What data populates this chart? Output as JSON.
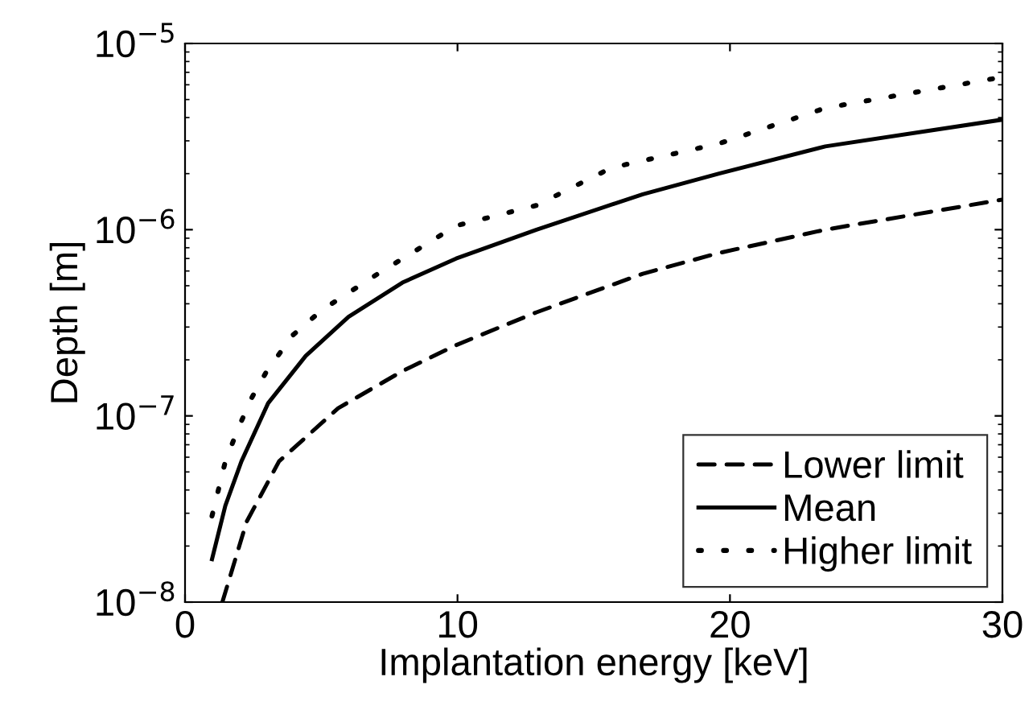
{
  "chart_data": {
    "type": "line",
    "xlabel": "Implantation energy [keV]",
    "ylabel": "Depth [m]",
    "log": "y",
    "xlim": [
      0,
      30
    ],
    "ylim": [
      1e-08,
      1e-05
    ],
    "xticks": [
      0,
      10,
      20,
      30
    ],
    "yticks": [
      {
        "value": 1e-08,
        "label": "10$^{−8}$"
      },
      {
        "value": 1e-07,
        "label": "10$^{−7}$"
      },
      {
        "value": 1e-06,
        "label": "10$^{−6}$"
      },
      {
        "value": 1e-05,
        "label": "10$^{−5}$"
      }
    ],
    "grid": false,
    "legend": "bottom right",
    "series": [
      {
        "name": "Lower limit",
        "color": "#000000",
        "line_style": "dashed",
        "x": [
          1.37,
          2.26,
          3.45,
          5.62,
          7.98,
          9.95,
          12.9,
          16.8,
          19.6,
          23.5,
          30
        ],
        "values": [
          1e-08,
          2.7e-08,
          5.7e-08,
          1.1e-07,
          1.74e-07,
          2.4e-07,
          3.6e-07,
          5.8e-07,
          7.5e-07,
          1e-06,
          1.45e-06
        ]
      },
      {
        "name": "Mean",
        "color": "#000000",
        "line_style": "solid",
        "x": [
          0.99,
          1.48,
          2.07,
          3.05,
          4.43,
          6.0,
          7.98,
          9.95,
          12.9,
          16.8,
          19.6,
          23.5,
          30
        ],
        "values": [
          1.7e-08,
          3.3e-08,
          5.7e-08,
          1.17e-07,
          2.1e-07,
          3.4e-07,
          5.2e-07,
          7e-07,
          1e-06,
          1.55e-06,
          2e-06,
          2.8e-06,
          3.9e-06
        ]
      },
      {
        "name": "Higher limit",
        "color": "#000000",
        "line_style": "dotted",
        "x": [
          0.99,
          1.48,
          1.97,
          2.46,
          2.96,
          3.94,
          5.02,
          7.0,
          9.95,
          12.9,
          15.65,
          19.6,
          23.5,
          30
        ],
        "values": [
          2.9e-08,
          5.7e-08,
          8.7e-08,
          1.26e-07,
          1.7e-07,
          2.7e-07,
          3.7e-07,
          5.7e-07,
          1.05e-06,
          1.35e-06,
          2.15e-06,
          2.9e-06,
          4.5e-06,
          6.6e-06
        ]
      }
    ]
  }
}
